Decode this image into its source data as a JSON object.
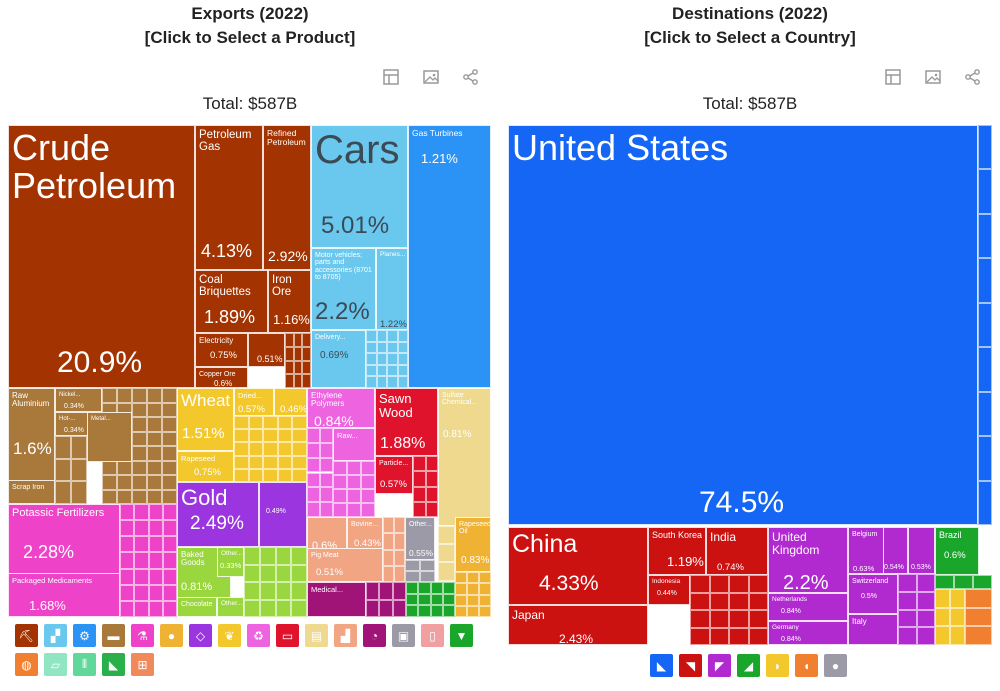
{
  "left": {
    "title_line1": "Exports (2022)",
    "title_line2": "[Click to Select a Product]",
    "total": "Total: $587B",
    "toolbar": [
      "table-icon",
      "image-icon",
      "share-icon"
    ]
  },
  "right": {
    "title_line1": "Destinations (2022)",
    "title_line2": "[Click to Select a Country]",
    "total": "Total: $587B",
    "toolbar": [
      "table-icon",
      "image-icon",
      "share-icon"
    ]
  },
  "chart_data": [
    {
      "type": "treemap",
      "title": "Exports (2022)",
      "total": "$587B",
      "items": [
        {
          "label": "Crude Petroleum",
          "value": 20.9,
          "share": "20.9%",
          "color": "#a33300"
        },
        {
          "label": "Petroleum Gas",
          "value": 4.13,
          "share": "4.13%",
          "color": "#a33300"
        },
        {
          "label": "Refined Petroleum",
          "value": 2.92,
          "share": "2.92%",
          "color": "#a33300"
        },
        {
          "label": "Coal Briquettes",
          "value": 1.89,
          "share": "1.89%",
          "color": "#a33300"
        },
        {
          "label": "Iron Ore",
          "value": 1.16,
          "share": "1.16%",
          "color": "#a33300"
        },
        {
          "label": "Electricity",
          "value": 0.75,
          "share": "0.75%",
          "color": "#a33300"
        },
        {
          "label": "",
          "value": 0.51,
          "share": "0.51%",
          "color": "#a33300"
        },
        {
          "label": "Copper Ore",
          "value": 0.6,
          "share": "0.6%",
          "color": "#a33300"
        },
        {
          "label": "Cars",
          "value": 5.01,
          "share": "5.01%",
          "color": "#6ac8ee"
        },
        {
          "label": "Motor vehicles; parts and accessories (8701 to 8705)",
          "value": 2.2,
          "share": "2.2%",
          "color": "#6ac8ee"
        },
        {
          "label": "Planes...",
          "value": 1.22,
          "share": "1.22%",
          "color": "#6ac8ee"
        },
        {
          "label": "Delivery...",
          "value": 0.69,
          "share": "0.69%",
          "color": "#6ac8ee"
        },
        {
          "label": "Gas Turbines",
          "value": 1.21,
          "share": "1.21%",
          "color": "#2b93f5"
        },
        {
          "label": "Raw Aluminium",
          "value": 1.6,
          "share": "1.6%",
          "color": "#a8793a"
        },
        {
          "label": "Nickel...",
          "value": 0.34,
          "share": "0.34%",
          "color": "#a8793a"
        },
        {
          "label": "Hot-...",
          "value": 0.34,
          "share": "0.34%",
          "color": "#a8793a"
        },
        {
          "label": "Metal...",
          "value": null,
          "share": "",
          "color": "#a8793a"
        },
        {
          "label": "Scrap Iron",
          "value": null,
          "share": "",
          "color": "#a8793a"
        },
        {
          "label": "Wheat",
          "value": 1.51,
          "share": "1.51%",
          "color": "#f3c82d"
        },
        {
          "label": "Dried...",
          "value": 0.57,
          "share": "0.57%",
          "color": "#f3c82d"
        },
        {
          "label": "",
          "value": 0.46,
          "share": "0.46%",
          "color": "#f3c82d"
        },
        {
          "label": "Rapeseed",
          "value": 0.75,
          "share": "0.75%",
          "color": "#f3c82d"
        },
        {
          "label": "Gold",
          "value": 2.49,
          "share": "2.49%",
          "color": "#9a35e0"
        },
        {
          "label": "",
          "value": 0.49,
          "share": "0.49%",
          "color": "#9a35e0"
        },
        {
          "label": "Ethylene Polymers",
          "value": 0.84,
          "share": "0.84%",
          "color": "#ee63e0"
        },
        {
          "label": "Raw...",
          "value": null,
          "share": "",
          "color": "#ee63e0"
        },
        {
          "label": "Sawn Wood",
          "value": 1.88,
          "share": "1.88%",
          "color": "#e0132c"
        },
        {
          "label": "Particle...",
          "value": 0.57,
          "share": "0.57%",
          "color": "#e0132c"
        },
        {
          "label": "Sulfate Chemical...",
          "value": 0.81,
          "share": "0.81%",
          "color": "#eed98e"
        },
        {
          "label": "Potassic Fertilizers",
          "value": 2.28,
          "share": "2.28%",
          "color": "#ee42c8"
        },
        {
          "label": "Packaged Medicaments",
          "value": 1.68,
          "share": "1.68%",
          "color": "#ee42c8"
        },
        {
          "label": "Baked Goods",
          "value": 0.81,
          "share": "0.81%",
          "color": "#9ad63d"
        },
        {
          "label": "Other...",
          "value": 0.33,
          "share": "0.33%",
          "color": "#9ad63d"
        },
        {
          "label": "Chocolate",
          "value": null,
          "share": "",
          "color": "#9ad63d"
        },
        {
          "label": "Other...",
          "value": null,
          "share": "",
          "color": "#9ad63d"
        },
        {
          "label": "",
          "value": 0.6,
          "share": "0.6%",
          "color": "#f2a582"
        },
        {
          "label": "Bovine...",
          "value": 0.43,
          "share": "0.43%",
          "color": "#f2a582"
        },
        {
          "label": "Pig Meat",
          "value": 0.51,
          "share": "0.51%",
          "color": "#f2a582"
        },
        {
          "label": "Other...",
          "value": 0.55,
          "share": "0.55%",
          "color": "#9b9aa6"
        },
        {
          "label": "Rapeseed Oil",
          "value": 0.83,
          "share": "0.83%",
          "color": "#f0b233"
        },
        {
          "label": "Medical...",
          "value": null,
          "share": "",
          "color": "#a01478"
        }
      ]
    },
    {
      "type": "treemap",
      "title": "Destinations (2022)",
      "total": "$587B",
      "items": [
        {
          "label": "United States",
          "value": 74.5,
          "share": "74.5%",
          "color": "#1566f5"
        },
        {
          "label": "China",
          "value": 4.33,
          "share": "4.33%",
          "color": "#cc1111"
        },
        {
          "label": "Japan",
          "value": 2.43,
          "share": "2.43%",
          "color": "#cc1111"
        },
        {
          "label": "South Korea",
          "value": 1.19,
          "share": "1.19%",
          "color": "#cc1111"
        },
        {
          "label": "India",
          "value": 0.74,
          "share": "0.74%",
          "color": "#cc1111"
        },
        {
          "label": "Indonesia",
          "value": 0.44,
          "share": "0.44%",
          "color": "#cc1111"
        },
        {
          "label": "United Kingdom",
          "value": 2.2,
          "share": "2.2%",
          "color": "#b12ad0"
        },
        {
          "label": "Netherlands",
          "value": 0.84,
          "share": "0.84%",
          "color": "#b12ad0"
        },
        {
          "label": "Germany",
          "value": 0.84,
          "share": "0.84%",
          "color": "#b12ad0"
        },
        {
          "label": "Belgium",
          "value": 0.63,
          "share": "0.63%",
          "color": "#b12ad0"
        },
        {
          "label": "",
          "value": 0.54,
          "share": "0.54%",
          "color": "#b12ad0"
        },
        {
          "label": "",
          "value": 0.53,
          "share": "0.53%",
          "color": "#b12ad0"
        },
        {
          "label": "Switzerland",
          "value": 0.5,
          "share": "0.5%",
          "color": "#b12ad0"
        },
        {
          "label": "Italy",
          "value": null,
          "share": "",
          "color": "#b12ad0"
        },
        {
          "label": "Brazil",
          "value": 0.6,
          "share": "0.6%",
          "color": "#1aa62a"
        }
      ]
    }
  ],
  "product_icons": [
    {
      "name": "mineral-products-icon",
      "color": "#a33300",
      "glyph": "⛏"
    },
    {
      "name": "transportation-icon",
      "color": "#6ac8ee",
      "glyph": "▞"
    },
    {
      "name": "machines-icon",
      "color": "#2b93f5",
      "glyph": "⚙"
    },
    {
      "name": "metals-icon",
      "color": "#a8793a",
      "glyph": "▬"
    },
    {
      "name": "chemical-products-icon",
      "color": "#ee42c8",
      "glyph": "⚗"
    },
    {
      "name": "foodstuffs-icon",
      "color": "#f0b233",
      "glyph": "●"
    },
    {
      "name": "precious-metals-icon",
      "color": "#9a35e0",
      "glyph": "◇"
    },
    {
      "name": "vegetable-products-icon",
      "color": "#f3c82d",
      "glyph": "❦"
    },
    {
      "name": "plastics-icon",
      "color": "#ee63e0",
      "glyph": "♻"
    },
    {
      "name": "wood-products-icon",
      "color": "#e0132c",
      "glyph": "▭"
    },
    {
      "name": "paper-goods-icon",
      "color": "#eed98e",
      "glyph": "▤"
    },
    {
      "name": "animal-products-icon",
      "color": "#f2a582",
      "glyph": "▟"
    },
    {
      "name": "instruments-icon",
      "color": "#a01478",
      "glyph": "◔"
    },
    {
      "name": "stone-and-glass-icon",
      "color": "#9b9aa6",
      "glyph": "▣"
    },
    {
      "name": "miscellaneous-icon",
      "color": "#f0a0a0",
      "glyph": "▯"
    },
    {
      "name": "textiles-icon",
      "color": "#1aa62a",
      "glyph": "▼"
    },
    {
      "name": "animal-hides-icon",
      "color": "#f08030",
      "glyph": "◍"
    },
    {
      "name": "footwear-icon",
      "color": "#8fe6c0",
      "glyph": "▱"
    },
    {
      "name": "arms-icon",
      "color": "#5fd89a",
      "glyph": "⫴"
    },
    {
      "name": "footwear-and-headwear-icon",
      "color": "#2ab04a",
      "glyph": "◣"
    },
    {
      "name": "art-and-antiques-icon",
      "color": "#f08a5a",
      "glyph": "⊞"
    }
  ],
  "continent_icons": [
    {
      "name": "north-america-icon",
      "color": "#1566f5",
      "glyph": "◣"
    },
    {
      "name": "asia-icon",
      "color": "#cc1111",
      "glyph": "◥"
    },
    {
      "name": "europe-icon",
      "color": "#b12ad0",
      "glyph": "◤"
    },
    {
      "name": "south-america-icon",
      "color": "#1aa62a",
      "glyph": "◢"
    },
    {
      "name": "africa-icon",
      "color": "#f3c82d",
      "glyph": "◗"
    },
    {
      "name": "oceania-icon",
      "color": "#f08030",
      "glyph": "◖"
    },
    {
      "name": "antarctica-icon",
      "color": "#9b9aa6",
      "glyph": "●"
    }
  ]
}
